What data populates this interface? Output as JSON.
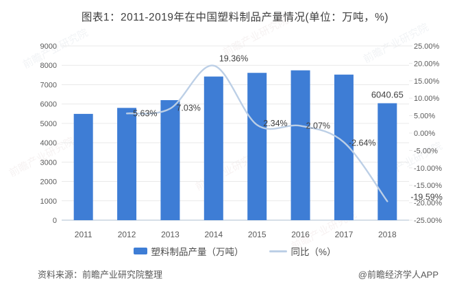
{
  "title": "图表1：2011-2019年在中国塑料制品产量情况(单位：万吨，%)",
  "watermark": "前瞻产业研究院",
  "footer": {
    "source": "资料来源：前瞻产业研究院整理",
    "credit": "@前瞻经济学人APP"
  },
  "legend": {
    "items": [
      {
        "label": "塑料制品产量（万吨）",
        "swatch": "bar"
      },
      {
        "label": "同比（%）",
        "swatch": "line"
      }
    ]
  },
  "colors": {
    "bar": "#3e7dd5",
    "line": "#bccfe6",
    "grid": "#e9e9e9",
    "axis_line": "#c9d3df",
    "tick_text": "#595959",
    "label_text": "#3f3f3f",
    "title_text": "#3d3d3d"
  },
  "chart_data": {
    "type": "bar+line",
    "title": "图表1：2011-2019年在中国塑料制品产量情况(单位：万吨，%)",
    "categories": [
      "2011",
      "2012",
      "2013",
      "2014",
      "2015",
      "2016",
      "2017",
      "2018"
    ],
    "series": [
      {
        "name": "塑料制品产量（万吨）",
        "type": "bar",
        "axis": "left",
        "unit": "万吨",
        "values": [
          5490,
          5800,
          6200,
          7420,
          7610,
          7740,
          7520,
          6040.65
        ],
        "point_labels": [
          null,
          null,
          null,
          null,
          null,
          null,
          null,
          "6040.65"
        ]
      },
      {
        "name": "同比（%）",
        "type": "line",
        "axis": "right",
        "unit": "%",
        "values": [
          null,
          5.63,
          7.03,
          19.36,
          2.34,
          2.07,
          -2.64,
          -19.59
        ],
        "point_labels": [
          null,
          "5.63%",
          "7.03%",
          "19.36%",
          "2.34%",
          "2.07%",
          "-2.64%",
          "-19.59%"
        ]
      }
    ],
    "left_axis": {
      "min": 0,
      "max": 9000,
      "step": 1000,
      "tick_labels": [
        "0",
        "1000",
        "2000",
        "3000",
        "4000",
        "5000",
        "6000",
        "7000",
        "8000",
        "9000"
      ]
    },
    "right_axis": {
      "min": -25,
      "max": 25,
      "step": 5,
      "tick_labels": [
        "25.00%",
        "20.00%",
        "15.00%",
        "10.00%",
        "5.00%",
        "0.00%",
        "-5.00%",
        "-10.00%",
        "-15.00%",
        "-20.00%",
        "-25.00%"
      ]
    },
    "grid": true,
    "legend_position": "bottom"
  }
}
